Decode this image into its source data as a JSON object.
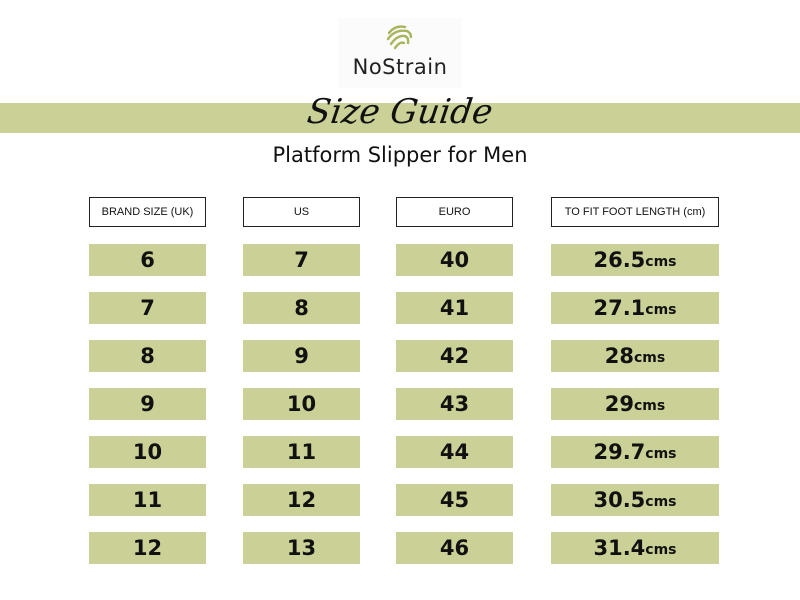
{
  "brand": {
    "name": "NoStrain",
    "logo_icon": "fingerprint-icon",
    "accent": "#cbd196"
  },
  "title": "Size Guide",
  "subtitle": "Platform Slipper for Men",
  "headers": [
    "BRAND SIZE (UK)",
    "US",
    "EURO",
    "TO FIT FOOT LENGTH (cm)"
  ],
  "rows": [
    {
      "uk": "6",
      "us": "7",
      "euro": "40",
      "length": "26.5",
      "unit": "cms"
    },
    {
      "uk": "7",
      "us": "8",
      "euro": "41",
      "length": "27.1",
      "unit": "cms"
    },
    {
      "uk": "8",
      "us": "9",
      "euro": "42",
      "length": "28",
      "unit": "cms"
    },
    {
      "uk": "9",
      "us": "10",
      "euro": "43",
      "length": "29",
      "unit": "cms"
    },
    {
      "uk": "10",
      "us": "11",
      "euro": "44",
      "length": "29.7",
      "unit": "cms"
    },
    {
      "uk": "11",
      "us": "12",
      "euro": "45",
      "length": "30.5",
      "unit": "cms"
    },
    {
      "uk": "12",
      "us": "13",
      "euro": "46",
      "length": "31.4",
      "unit": "cms"
    }
  ]
}
